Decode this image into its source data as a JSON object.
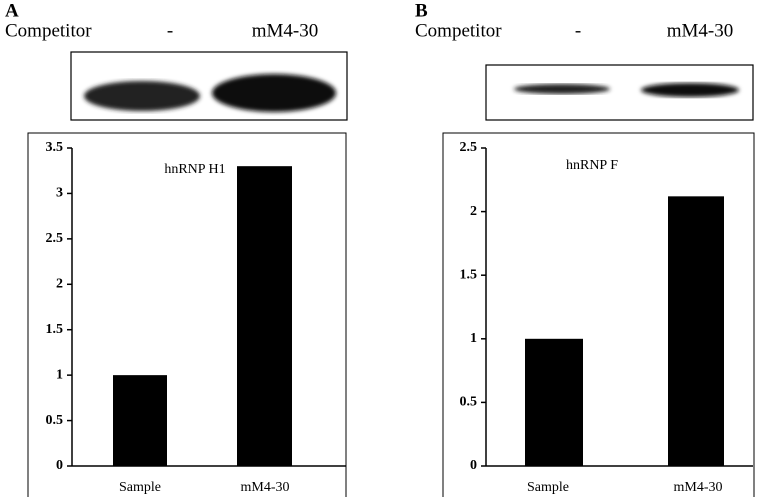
{
  "chart_data": [
    {
      "type": "bar",
      "panel_label": "A",
      "row_label": "Competitor",
      "lane_labels": [
        "-",
        "mM4-30"
      ],
      "title": "hnRNP H1",
      "categories": [
        "Sample",
        "mM4-30"
      ],
      "values": [
        1,
        3.3
      ],
      "color": "#000000",
      "ylim": [
        0,
        3.5
      ],
      "yticks": [
        0,
        0.5,
        1,
        1.5,
        2,
        2.5,
        3,
        3.5
      ]
    },
    {
      "type": "bar",
      "panel_label": "B",
      "row_label": "Competitor",
      "lane_labels": [
        "-",
        "mM4-30"
      ],
      "title": "hnRNP F",
      "categories": [
        "Sample",
        "mM4-30"
      ],
      "values": [
        1,
        2.12
      ],
      "color": "#000000",
      "ylim": [
        0,
        2.5
      ],
      "yticks": [
        0,
        0.5,
        1,
        1.5,
        2,
        2.5
      ]
    }
  ]
}
